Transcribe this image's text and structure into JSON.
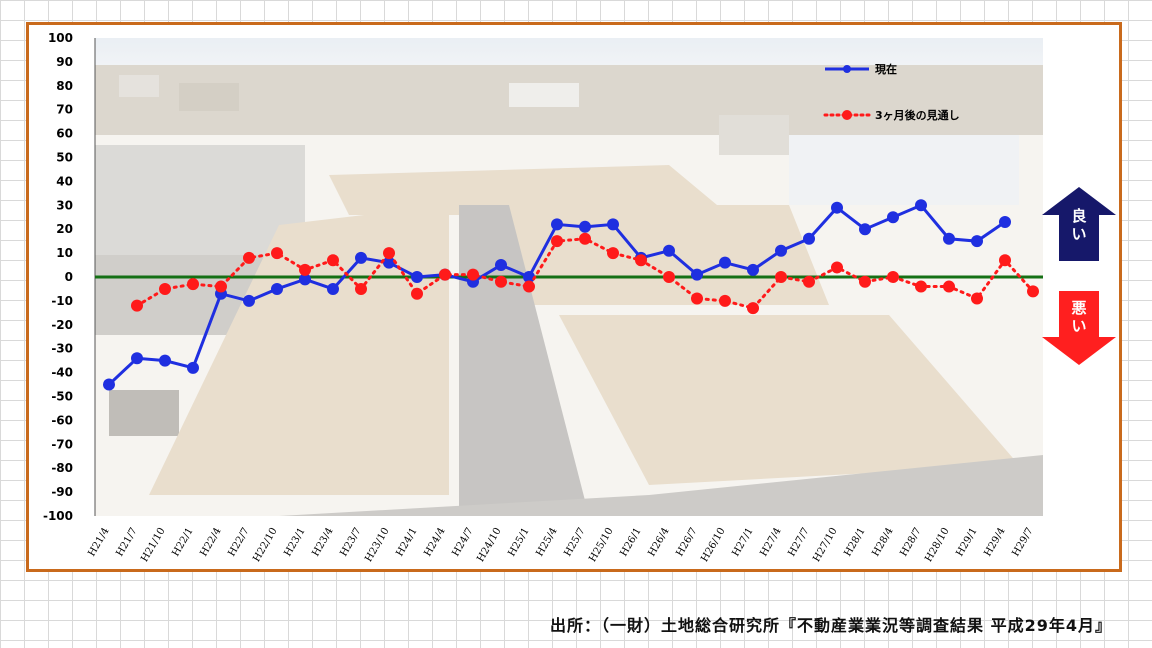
{
  "chart_data": {
    "type": "line",
    "background": "photo of a newly developed residential subdivision (aerial view)",
    "categories": [
      "H21/4",
      "H21/7",
      "H21/10",
      "H22/1",
      "H22/4",
      "H22/7",
      "H22/10",
      "H23/1",
      "H23/4",
      "H23/7",
      "H23/10",
      "H24/1",
      "H24/4",
      "H24/7",
      "H24/10",
      "H25/1",
      "H25/4",
      "H25/7",
      "H25/10",
      "H26/1",
      "H26/4",
      "H26/7",
      "H26/10",
      "H27/1",
      "H27/4",
      "H27/7",
      "H27/10",
      "H28/1",
      "H28/4",
      "H28/7",
      "H28/10",
      "H29/1",
      "H29/4",
      "H29/7"
    ],
    "series": [
      {
        "name": "現在",
        "style": "solid-line-circle-markers",
        "color": "#1f2fe0",
        "values": [
          -45,
          -34,
          -35,
          -38,
          -7,
          -10,
          -5,
          -1,
          -5,
          8,
          6,
          0,
          1,
          -2,
          5,
          0,
          22,
          21,
          22,
          8,
          11,
          1,
          6,
          3,
          11,
          16,
          29,
          20,
          25,
          30,
          16,
          15,
          23,
          null
        ]
      },
      {
        "name": "3ヶ月後の見通し",
        "style": "dotted-line-circle-markers",
        "color": "#ff1a1a",
        "values": [
          null,
          -12,
          -5,
          -3,
          -4,
          8,
          10,
          3,
          7,
          -5,
          10,
          -7,
          1,
          1,
          -2,
          -4,
          15,
          16,
          10,
          7,
          0,
          -9,
          -10,
          -13,
          0,
          -2,
          4,
          -2,
          0,
          -4,
          -4,
          -9,
          7,
          -6
        ]
      }
    ],
    "ylim": [
      -100,
      100
    ],
    "yticks": [
      100,
      90,
      80,
      70,
      60,
      50,
      40,
      30,
      20,
      10,
      0,
      -10,
      -20,
      -30,
      -40,
      -50,
      -60,
      -70,
      -80,
      -90,
      -100
    ],
    "zero_line_color": "#157015",
    "legend_position": "top-right",
    "side_indicators": {
      "up": {
        "label": "良い",
        "color": "#16186a"
      },
      "down": {
        "label": "悪い",
        "color": "#ff1f1f"
      }
    }
  },
  "source": "出所：（一財）土地総合研究所『不動産業業況等調査結果 平成29年4月』"
}
